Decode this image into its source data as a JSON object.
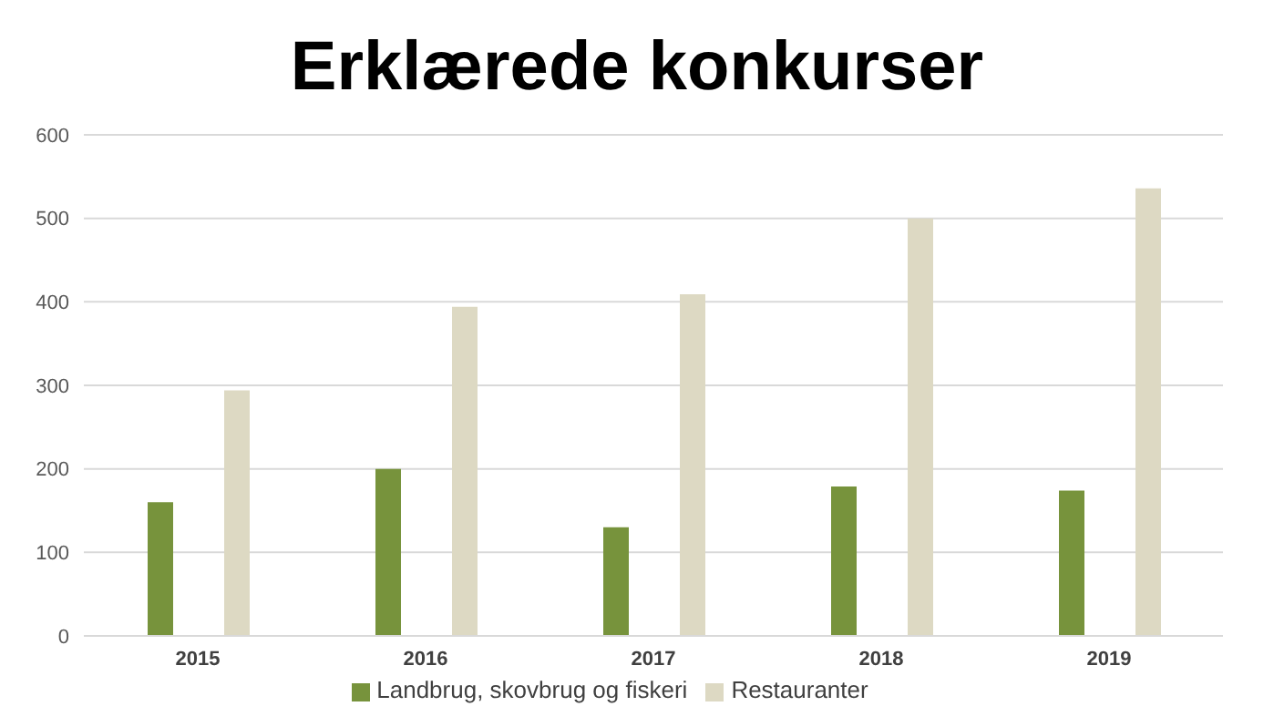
{
  "chart_data": {
    "type": "bar",
    "title": "Erklærede konkurser",
    "categories": [
      "2015",
      "2016",
      "2017",
      "2018",
      "2019"
    ],
    "series": [
      {
        "name": "Landbrug, skovbrug og fiskeri",
        "color": "#77933c",
        "values": [
          160,
          200,
          130,
          179,
          174
        ]
      },
      {
        "name": "Restauranter",
        "color": "#ddd9c3",
        "values": [
          294,
          394,
          409,
          500,
          536
        ]
      }
    ],
    "ylim": [
      0,
      600
    ],
    "yticks": [
      0,
      100,
      200,
      300,
      400,
      500,
      600
    ],
    "grid": "y",
    "legend": "bottom"
  }
}
